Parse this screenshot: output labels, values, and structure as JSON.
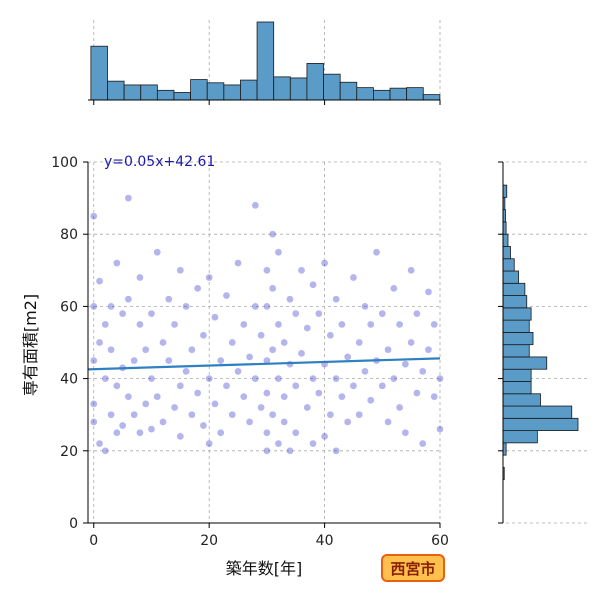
{
  "chart_data": {
    "type": "scatter",
    "title": "",
    "xlabel": "築年数[年]",
    "ylabel": "専有面積[m2]",
    "xlim": [
      -1,
      60
    ],
    "ylim": [
      0,
      100
    ],
    "x_ticks": [
      "0",
      "20",
      "40",
      "60"
    ],
    "y_ticks": [
      "0",
      "20",
      "40",
      "60",
      "80",
      "100"
    ],
    "grid": true,
    "regression": {
      "label": "y=0.05x+42.61",
      "slope": 0.05,
      "intercept": 42.61,
      "color": "#2f80c0"
    },
    "point_color": "#2a2acc",
    "badge": {
      "text": "西宮市",
      "fill": "#ffc04d",
      "border": "#e86010"
    },
    "marginal_x_hist": {
      "bin_width": 2.88,
      "start": -0.5,
      "counts": [
        100,
        35,
        28,
        28,
        18,
        14,
        38,
        32,
        28,
        37,
        145,
        43,
        41,
        68,
        48,
        33,
        23,
        18,
        22,
        23,
        10
      ]
    },
    "marginal_y_hist": {
      "bin_width": 3.4,
      "start": 12,
      "counts": [
        2,
        0,
        5,
        55,
        120,
        110,
        60,
        45,
        45,
        70,
        42,
        48,
        42,
        45,
        38,
        35,
        25,
        18,
        12,
        8,
        5,
        4,
        3,
        6
      ],
      "hist_color": "#5a9bc8"
    },
    "points": [
      [
        0,
        45
      ],
      [
        0,
        60
      ],
      [
        0,
        85
      ],
      [
        0,
        28
      ],
      [
        0,
        33
      ],
      [
        1,
        50
      ],
      [
        1,
        22
      ],
      [
        1,
        67
      ],
      [
        2,
        40
      ],
      [
        2,
        55
      ],
      [
        2,
        20
      ],
      [
        3,
        30
      ],
      [
        3,
        48
      ],
      [
        3,
        60
      ],
      [
        4,
        38
      ],
      [
        4,
        72
      ],
      [
        4,
        25
      ],
      [
        5,
        43
      ],
      [
        5,
        58
      ],
      [
        5,
        27
      ],
      [
        6,
        35
      ],
      [
        6,
        62
      ],
      [
        6,
        90
      ],
      [
        7,
        30
      ],
      [
        7,
        45
      ],
      [
        8,
        55
      ],
      [
        8,
        25
      ],
      [
        8,
        68
      ],
      [
        9,
        33
      ],
      [
        9,
        48
      ],
      [
        10,
        40
      ],
      [
        10,
        58
      ],
      [
        10,
        26
      ],
      [
        11,
        35
      ],
      [
        11,
        75
      ],
      [
        12,
        50
      ],
      [
        12,
        28
      ],
      [
        13,
        45
      ],
      [
        13,
        62
      ],
      [
        14,
        32
      ],
      [
        14,
        55
      ],
      [
        15,
        38
      ],
      [
        15,
        70
      ],
      [
        15,
        24
      ],
      [
        16,
        42
      ],
      [
        16,
        60
      ],
      [
        17,
        30
      ],
      [
        17,
        48
      ],
      [
        18,
        36
      ],
      [
        18,
        65
      ],
      [
        19,
        27
      ],
      [
        19,
        52
      ],
      [
        20,
        40
      ],
      [
        20,
        22
      ],
      [
        20,
        68
      ],
      [
        21,
        33
      ],
      [
        21,
        57
      ],
      [
        22,
        45
      ],
      [
        22,
        25
      ],
      [
        23,
        38
      ],
      [
        23,
        63
      ],
      [
        24,
        30
      ],
      [
        24,
        50
      ],
      [
        25,
        42
      ],
      [
        25,
        72
      ],
      [
        26,
        35
      ],
      [
        26,
        55
      ],
      [
        27,
        28
      ],
      [
        27,
        46
      ],
      [
        28,
        40
      ],
      [
        28,
        60
      ],
      [
        28,
        88
      ],
      [
        29,
        32
      ],
      [
        29,
        52
      ],
      [
        30,
        45
      ],
      [
        30,
        25
      ],
      [
        30,
        70
      ],
      [
        30,
        36
      ],
      [
        30,
        60
      ],
      [
        30,
        20
      ],
      [
        31,
        48
      ],
      [
        31,
        30
      ],
      [
        31,
        65
      ],
      [
        31,
        80
      ],
      [
        32,
        40
      ],
      [
        32,
        22
      ],
      [
        32,
        55
      ],
      [
        32,
        75
      ],
      [
        33,
        35
      ],
      [
        33,
        50
      ],
      [
        33,
        28
      ],
      [
        34,
        44
      ],
      [
        34,
        62
      ],
      [
        34,
        20
      ],
      [
        35,
        38
      ],
      [
        35,
        58
      ],
      [
        35,
        25
      ],
      [
        36,
        47
      ],
      [
        36,
        70
      ],
      [
        37,
        32
      ],
      [
        37,
        54
      ],
      [
        38,
        40
      ],
      [
        38,
        22
      ],
      [
        38,
        66
      ],
      [
        39,
        36
      ],
      [
        39,
        58
      ],
      [
        40,
        44
      ],
      [
        40,
        24
      ],
      [
        40,
        72
      ],
      [
        41,
        30
      ],
      [
        41,
        52
      ],
      [
        42,
        40
      ],
      [
        42,
        62
      ],
      [
        42,
        20
      ],
      [
        43,
        35
      ],
      [
        43,
        55
      ],
      [
        44,
        46
      ],
      [
        44,
        28
      ],
      [
        45,
        38
      ],
      [
        45,
        68
      ],
      [
        46,
        50
      ],
      [
        46,
        30
      ],
      [
        47,
        42
      ],
      [
        47,
        60
      ],
      [
        48,
        34
      ],
      [
        48,
        55
      ],
      [
        49,
        45
      ],
      [
        49,
        75
      ],
      [
        50,
        38
      ],
      [
        50,
        58
      ],
      [
        51,
        28
      ],
      [
        51,
        48
      ],
      [
        52,
        40
      ],
      [
        52,
        65
      ],
      [
        53,
        32
      ],
      [
        53,
        55
      ],
      [
        54,
        44
      ],
      [
        54,
        25
      ],
      [
        55,
        50
      ],
      [
        55,
        70
      ],
      [
        56,
        36
      ],
      [
        56,
        58
      ],
      [
        57,
        42
      ],
      [
        57,
        22
      ],
      [
        58,
        48
      ],
      [
        58,
        64
      ],
      [
        59,
        35
      ],
      [
        59,
        55
      ],
      [
        60,
        40
      ],
      [
        60,
        26
      ]
    ]
  }
}
